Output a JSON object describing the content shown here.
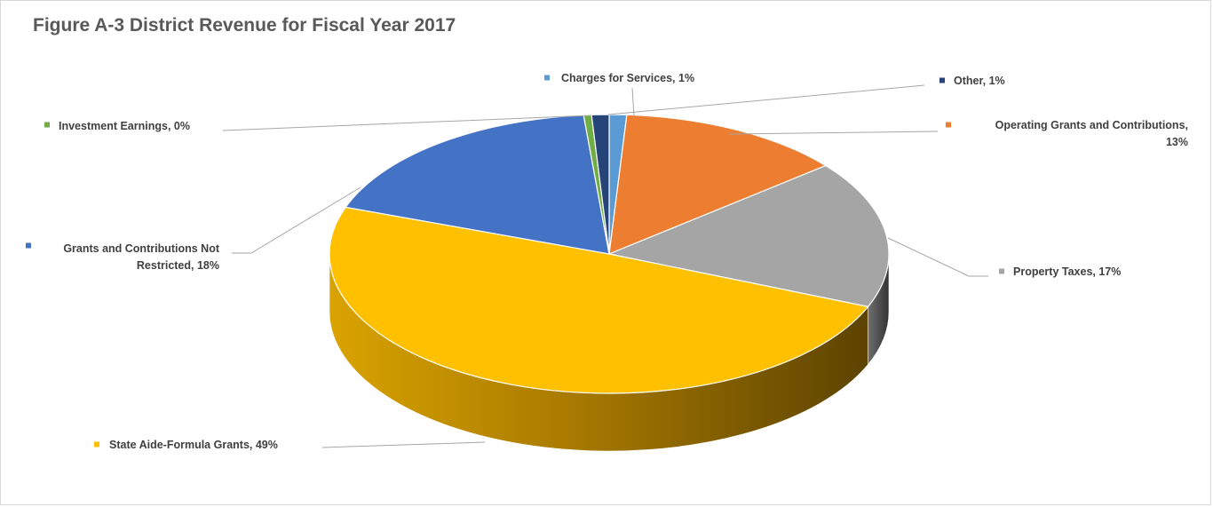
{
  "chart_data": {
    "type": "pie",
    "style": "3d",
    "title": "Figure A-3 District Revenue for Fiscal Year 2017",
    "slices": [
      {
        "name": "Charges for Services",
        "value": 1,
        "label": "Charges for Services, 1%",
        "color": "#5b9bd5"
      },
      {
        "name": "Operating Grants and Contributions",
        "value": 13,
        "label_lines": [
          "Operating Grants and Contributions,",
          "13%"
        ],
        "color": "#ed7d31"
      },
      {
        "name": "Property Taxes",
        "value": 17,
        "label": "Property Taxes, 17%",
        "color": "#a5a5a5"
      },
      {
        "name": "State Aide-Formula Grants",
        "value": 49,
        "label": "State Aide-Formula Grants, 49%",
        "color": "#ffc000"
      },
      {
        "name": "Grants and Contributions Not Restricted",
        "value": 18,
        "label_lines": [
          "Grants and Contributions Not",
          "Restricted, 18%"
        ],
        "color": "#4472c4"
      },
      {
        "name": "Investment Earnings",
        "value": 0,
        "label": "Investment Earnings, 0%",
        "color": "#70ad47"
      },
      {
        "name": "Other",
        "value": 1,
        "label": "Other, 1%",
        "color": "#264478"
      }
    ],
    "legend": "none",
    "data_labels": "outside with leader lines"
  }
}
